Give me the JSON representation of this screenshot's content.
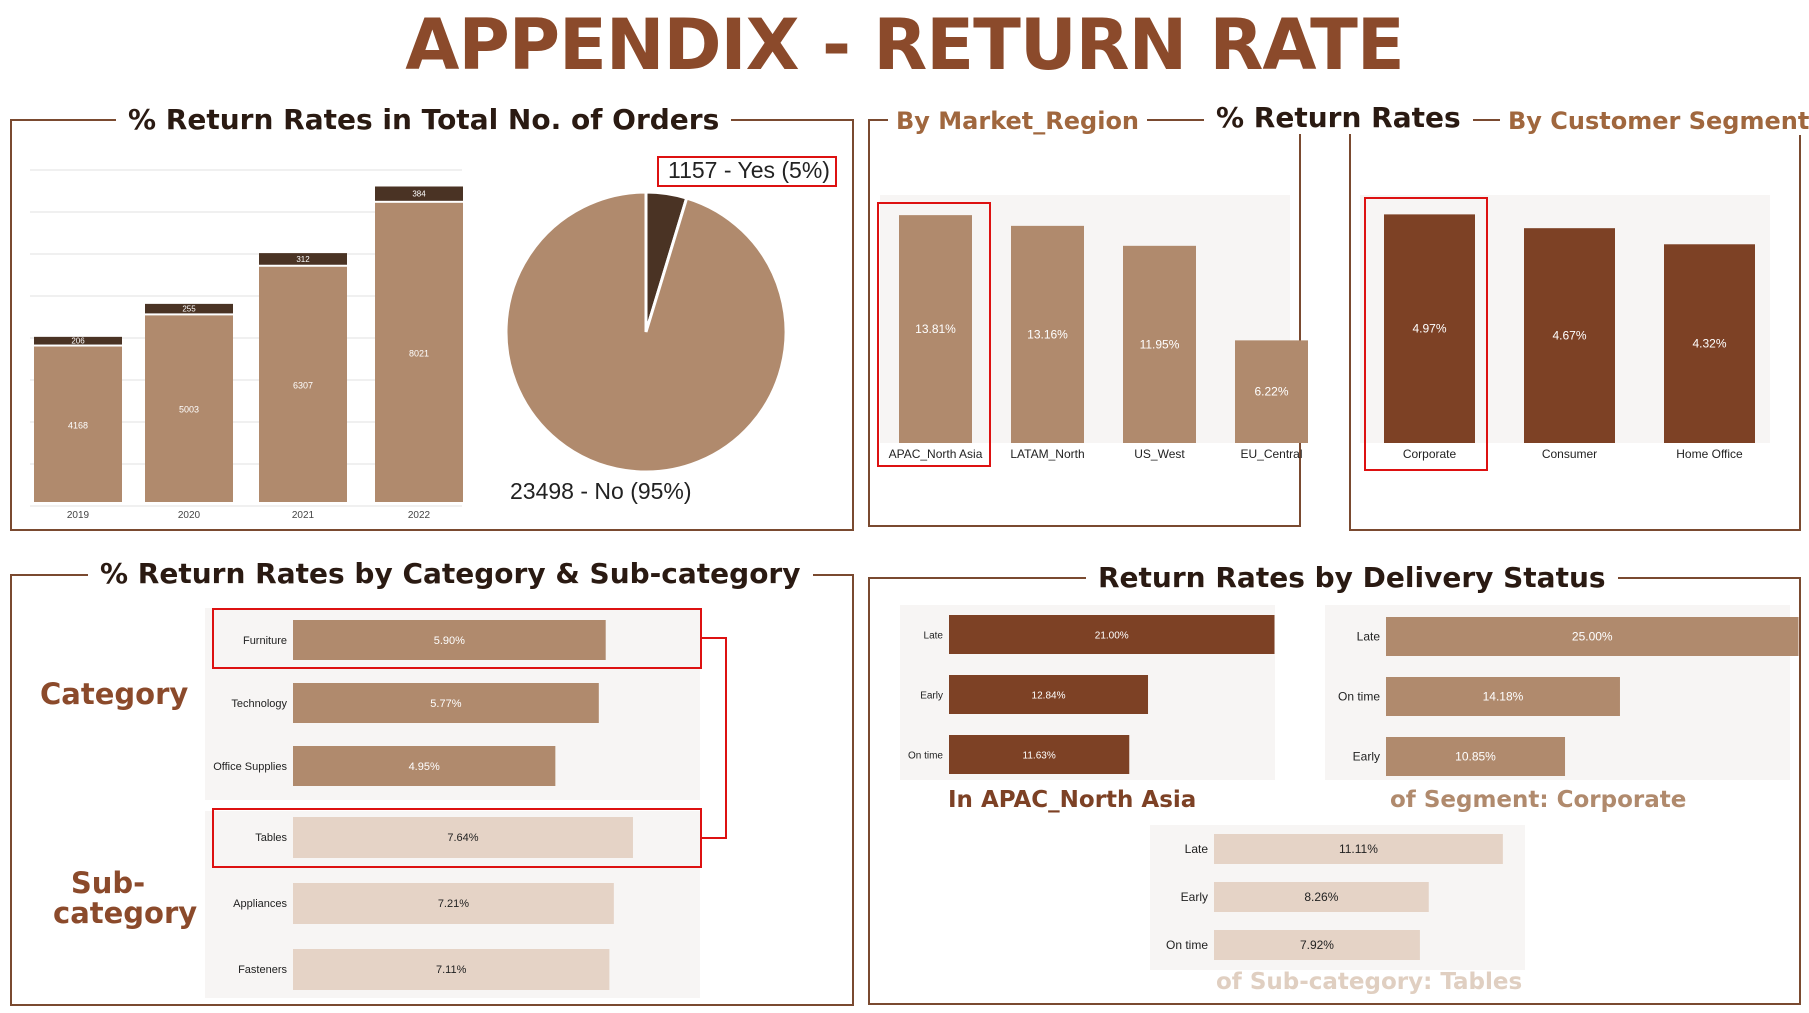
{
  "page_title": "APPENDIX - RETURN RATE",
  "panels": {
    "orders": {
      "title": "% Return Rates in Total No. of Orders"
    },
    "return_rates": {
      "title": "% Return Rates",
      "market_title": "By Market_Region",
      "segment_title": "By Customer Segment"
    },
    "category": {
      "title": "% Return Rates by Category & Sub-category",
      "category_label": "Category",
      "subcategory_label": "Sub-category"
    },
    "delivery": {
      "title": "Return Rates by Delivery Status",
      "apac_caption": "In APAC_North Asia",
      "corporate_caption": "of Segment: Corporate",
      "tables_caption": "of Sub-category: Tables"
    }
  },
  "colors": {
    "brown_dark": "#4a3324",
    "brown_light": "#b08a6d",
    "rust": "#7d4125",
    "cream": "#e5d3c6",
    "red": "#dd1111",
    "title": "#8b4a2b"
  },
  "chart_data": [
    {
      "id": "orders_by_year",
      "type": "bar",
      "stacked": true,
      "categories": [
        "2019",
        "2020",
        "2021",
        "2022"
      ],
      "series": [
        {
          "name": "No",
          "values": [
            4168,
            5003,
            6307,
            8021
          ]
        },
        {
          "name": "Yes",
          "values": [
            206,
            255,
            312,
            384
          ]
        }
      ]
    },
    {
      "id": "orders_pie",
      "type": "pie",
      "slices": [
        {
          "label": "1157 - Yes (5%)",
          "value": 1157
        },
        {
          "label": "23498 - No (95%)",
          "value": 23498
        }
      ]
    },
    {
      "id": "market_region",
      "type": "bar",
      "categories": [
        "APAC_North Asia",
        "LATAM_North",
        "US_West",
        "EU_Central"
      ],
      "values": [
        13.81,
        13.16,
        11.95,
        6.22
      ],
      "labels": [
        "13.81%",
        "13.16%",
        "11.95%",
        "6.22%"
      ]
    },
    {
      "id": "customer_segment",
      "type": "bar",
      "categories": [
        "Corporate",
        "Consumer",
        "Home Office"
      ],
      "values": [
        4.97,
        4.67,
        4.32
      ],
      "labels": [
        "4.97%",
        "4.67%",
        "4.32%"
      ]
    },
    {
      "id": "category",
      "type": "bar",
      "orientation": "horizontal",
      "categories": [
        "Furniture",
        "Technology",
        "Office Supplies"
      ],
      "values": [
        5.9,
        5.77,
        4.95
      ],
      "labels": [
        "5.90%",
        "5.77%",
        "4.95%"
      ]
    },
    {
      "id": "subcategory",
      "type": "bar",
      "orientation": "horizontal",
      "categories": [
        "Tables",
        "Appliances",
        "Fasteners"
      ],
      "values": [
        7.64,
        7.21,
        7.11
      ],
      "labels": [
        "7.64%",
        "7.21%",
        "7.11%"
      ]
    },
    {
      "id": "delivery_apac",
      "type": "bar",
      "orientation": "horizontal",
      "categories": [
        "Late",
        "Early",
        "On time"
      ],
      "values": [
        21.0,
        12.84,
        11.63
      ],
      "labels": [
        "21.00%",
        "12.84%",
        "11.63%"
      ]
    },
    {
      "id": "delivery_corporate",
      "type": "bar",
      "orientation": "horizontal",
      "categories": [
        "Late",
        "On time",
        "Early"
      ],
      "values": [
        25.0,
        14.18,
        10.85
      ],
      "labels": [
        "25.00%",
        "14.18%",
        "10.85%"
      ]
    },
    {
      "id": "delivery_tables",
      "type": "bar",
      "orientation": "horizontal",
      "categories": [
        "Late",
        "Early",
        "On time"
      ],
      "values": [
        11.11,
        8.26,
        7.92
      ],
      "labels": [
        "11.11%",
        "8.26%",
        "7.92%"
      ]
    }
  ]
}
